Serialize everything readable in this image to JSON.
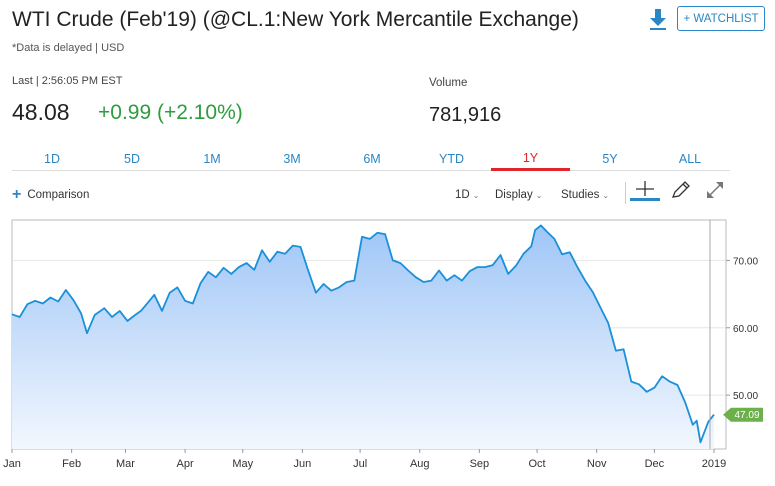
{
  "header": {
    "title": "WTI Crude (Feb'19) (@CL.1:New York Mercantile Exchange)",
    "delay_note": "*Data is delayed | USD",
    "watchlist_label": "+ WATCHLIST",
    "download_icon": "download-icon"
  },
  "quote": {
    "last_label": "Last | 2:56:05 PM EST",
    "last_price": "48.08",
    "change": "+0.99 (+2.10%)",
    "volume_label": "Volume",
    "volume_value": "781,916"
  },
  "range_tabs": [
    {
      "label": "1D",
      "active": false
    },
    {
      "label": "5D",
      "active": false
    },
    {
      "label": "1M",
      "active": false
    },
    {
      "label": "3M",
      "active": false
    },
    {
      "label": "6M",
      "active": false
    },
    {
      "label": "YTD",
      "active": false
    },
    {
      "label": "1Y",
      "active": true
    },
    {
      "label": "5Y",
      "active": false
    },
    {
      "label": "ALL",
      "active": false
    }
  ],
  "toolbar": {
    "comparison_label": "Comparison",
    "interval_label": "1D",
    "display_label": "Display",
    "studies_label": "Studies"
  },
  "colors": {
    "accent": "#2b86c5",
    "line": "#1a90d8",
    "fill_top": "#9fc6f7",
    "fill_bottom": "#f2f7fe",
    "positive": "#2e9c3f",
    "active_tab": "#e0252a",
    "price_tag": "#6bb04b"
  },
  "chart_data": {
    "type": "area",
    "title": "",
    "xlabel": "",
    "ylabel": "",
    "ylim": [
      42,
      76
    ],
    "yticks": [
      50,
      60,
      70
    ],
    "ytick_labels": [
      "50.00",
      "60.00",
      "70.00"
    ],
    "x_axis_labels": [
      "Jan",
      "Feb",
      "Mar",
      "Apr",
      "May",
      "Jun",
      "Jul",
      "Aug",
      "Sep",
      "Oct",
      "Nov",
      "Dec",
      "2019"
    ],
    "x_label_days": [
      0,
      31,
      59,
      90,
      120,
      151,
      181,
      212,
      243,
      273,
      304,
      334,
      365
    ],
    "last_value_label": "47.09",
    "last_value": 47.09,
    "series": [
      {
        "x_days": [
          0,
          4,
          8,
          12,
          16,
          20,
          24,
          28,
          32,
          36,
          39,
          43,
          48,
          52,
          56,
          60,
          64,
          67,
          70,
          74,
          78,
          82,
          86,
          90,
          94,
          98,
          102,
          106,
          110,
          114,
          118,
          122,
          126,
          130,
          134,
          138,
          142,
          146,
          150,
          154,
          158,
          162,
          166,
          170,
          174,
          178,
          182,
          186,
          190,
          194,
          198,
          202,
          206,
          210,
          214,
          218,
          222,
          226,
          230,
          234,
          238,
          242,
          246,
          250,
          254,
          258,
          262,
          266,
          270,
          272,
          275,
          278,
          282,
          286,
          290,
          294,
          298,
          302,
          306,
          310,
          314,
          318,
          322,
          326,
          330,
          334,
          338,
          342,
          346,
          350,
          354,
          356,
          358,
          362,
          365
        ],
        "values": [
          62.0,
          61.6,
          63.5,
          64.0,
          63.6,
          64.5,
          63.9,
          65.6,
          64.1,
          62.1,
          59.2,
          61.9,
          62.9,
          61.6,
          62.5,
          61.0,
          61.9,
          62.5,
          63.5,
          64.9,
          62.5,
          65.2,
          66.0,
          64.0,
          63.6,
          66.6,
          68.3,
          67.5,
          68.9,
          68.0,
          69.0,
          69.6,
          68.6,
          71.5,
          69.8,
          71.3,
          71.0,
          72.2,
          72.0,
          68.5,
          65.2,
          66.5,
          65.5,
          66.0,
          66.8,
          67.0,
          73.5,
          73.2,
          74.1,
          73.9,
          70.0,
          69.6,
          68.5,
          67.5,
          66.8,
          67.0,
          68.5,
          67.0,
          67.8,
          67.0,
          68.4,
          69.0,
          69.0,
          69.3,
          70.8,
          68.0,
          69.2,
          71.0,
          72.1,
          74.5,
          75.2,
          74.3,
          73.2,
          70.9,
          71.2,
          69.0,
          67.0,
          65.3,
          63.0,
          60.7,
          56.6,
          56.8,
          52.0,
          51.6,
          50.5,
          51.1,
          52.8,
          52.0,
          51.5,
          48.9,
          45.6,
          46.2,
          43.0,
          46.0,
          47.1
        ]
      }
    ],
    "grid": true
  }
}
